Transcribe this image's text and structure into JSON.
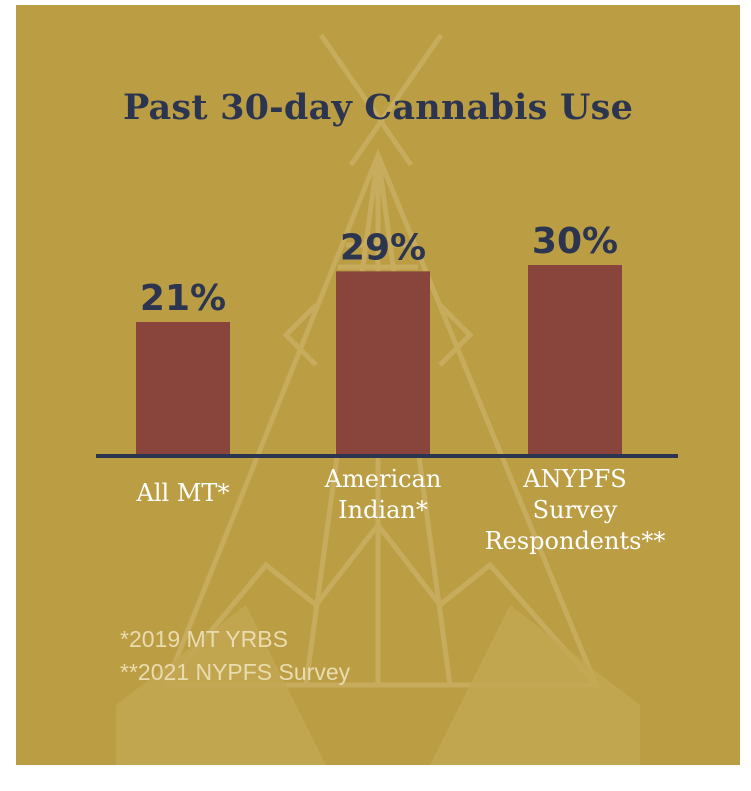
{
  "colors": {
    "background": "#bb9d43",
    "bar": "#89453c",
    "text": "#2c3550",
    "footnote": "#e9dcb0",
    "baseline": "#2c3550"
  },
  "chart_data": {
    "type": "bar",
    "title": "Past 30-day Cannabis Use",
    "categories": [
      [
        "All MT*"
      ],
      [
        "American",
        "Indian*"
      ],
      [
        "ANYPFS",
        "Survey",
        "Respondents**"
      ]
    ],
    "values": [
      21,
      29,
      30
    ],
    "data_labels": [
      "21%",
      "29%",
      "30%"
    ],
    "ylim": [
      0,
      30
    ],
    "grid": false,
    "legend": "none",
    "xlabel": "",
    "ylabel": ""
  },
  "footnotes": [
    "*2019 MT YRBS",
    "**2021 NYPFS Survey"
  ]
}
